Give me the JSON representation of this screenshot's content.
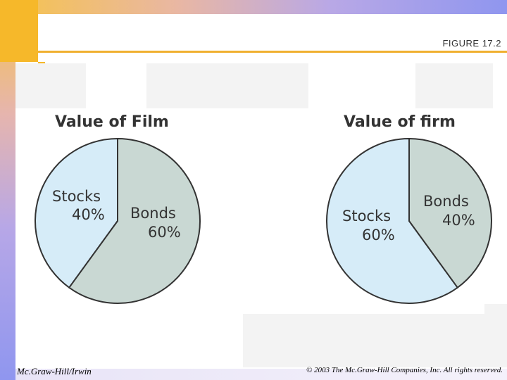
{
  "figure_label": "FIGURE 17.2",
  "footer": {
    "publisher": "Mc.Graw-Hill/Irwin",
    "copyright": "© 2003 The Mc.Graw-Hill Companies, Inc. All rights reserved."
  },
  "colors": {
    "stocks": "#d6ecf8",
    "bonds": "#c9d8d3",
    "outline": "#333333",
    "accent": "#f6b82a"
  },
  "chart_data": [
    {
      "type": "pie",
      "title": "Value of Film",
      "slices": [
        {
          "label": "Stocks",
          "percent_label": "40%",
          "value": 40
        },
        {
          "label": "Bonds",
          "percent_label": "60%",
          "value": 60
        }
      ]
    },
    {
      "type": "pie",
      "title": "Value of firm",
      "slices": [
        {
          "label": "Stocks",
          "percent_label": "60%",
          "value": 60
        },
        {
          "label": "Bonds",
          "percent_label": "40%",
          "value": 40
        }
      ]
    }
  ]
}
